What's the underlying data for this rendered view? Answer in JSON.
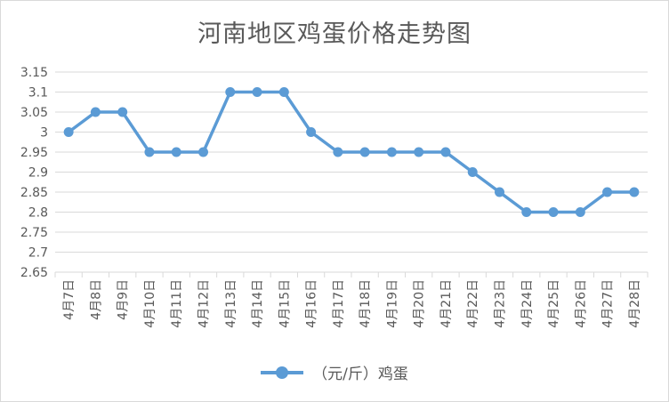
{
  "chart_data": {
    "type": "line",
    "title": "河南地区鸡蛋价格走势图",
    "categories": [
      "4月7日",
      "4月8日",
      "4月9日",
      "4月10日",
      "4月11日",
      "4月12日",
      "4月13日",
      "4月14日",
      "4月15日",
      "4月16日",
      "4月17日",
      "4月18日",
      "4月19日",
      "4月20日",
      "4月21日",
      "4月22日",
      "4月23日",
      "4月24日",
      "4月25日",
      "4月26日",
      "4月27日",
      "4月28日"
    ],
    "series": [
      {
        "name": "（元/斤）鸡蛋",
        "color": "#5b9bd5",
        "values": [
          3.0,
          3.05,
          3.05,
          2.95,
          2.95,
          2.95,
          3.1,
          3.1,
          3.1,
          3.0,
          2.95,
          2.95,
          2.95,
          2.95,
          2.95,
          2.9,
          2.85,
          2.8,
          2.8,
          2.8,
          2.85,
          2.85
        ]
      }
    ],
    "y_ticks": [
      "2.65",
      "2.7",
      "2.75",
      "2.8",
      "2.85",
      "2.9",
      "2.95",
      "3",
      "3.05",
      "3.1",
      "3.15"
    ],
    "ylim": [
      2.65,
      3.15
    ],
    "grid": true,
    "legend_position": "bottom",
    "xlabel": "",
    "ylabel": ""
  }
}
